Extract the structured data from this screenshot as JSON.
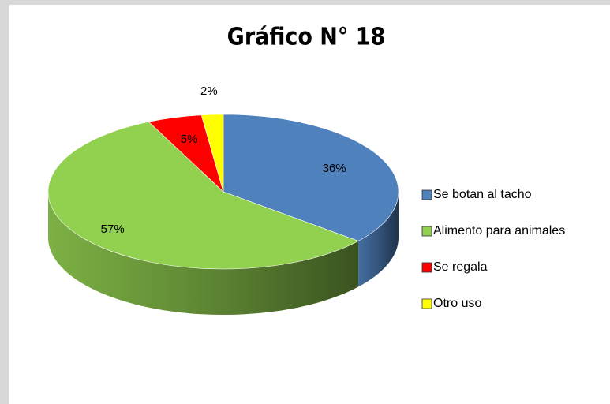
{
  "chart_data": {
    "type": "pie3d",
    "title": "Gráfico N° 18",
    "categories": [
      "Se botan al tacho",
      "Alimento para animales",
      "Se regala",
      "Otro uso"
    ],
    "values": [
      36,
      57,
      5,
      2
    ],
    "value_labels": [
      "36%",
      "57%",
      "5%",
      "2%"
    ],
    "colors": [
      "#4f81bd",
      "#92d050",
      "#ff0000",
      "#ffff00"
    ],
    "legend": "right"
  }
}
